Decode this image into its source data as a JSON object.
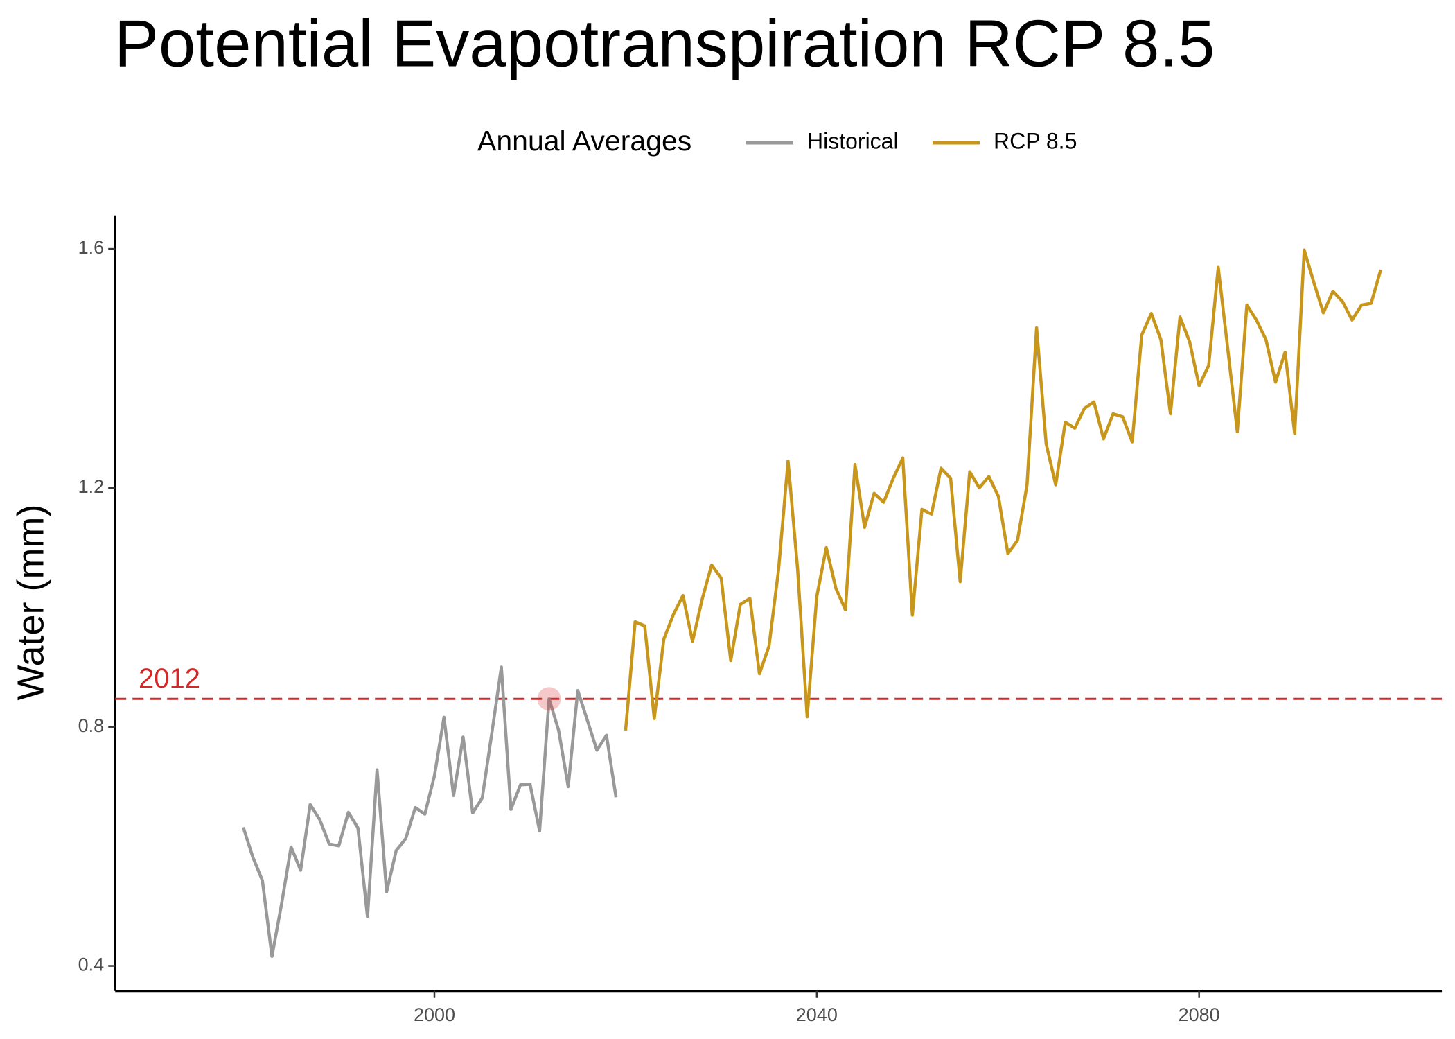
{
  "chart_data": {
    "type": "line",
    "title": "Potential Evapotranspiration RCP 8.5",
    "y_label": "Water (mm)",
    "legend_title": "Annual Averages",
    "legend_position": "top",
    "xlim": [
      1966.6,
      2105.4
    ],
    "ylim": [
      0.358,
      1.656
    ],
    "xticks": [
      2000,
      2040,
      2080
    ],
    "yticks": [
      0.4,
      0.8,
      1.2,
      1.6
    ],
    "grid": false,
    "series": [
      {
        "name": "Historical",
        "color": "#999999",
        "x": [
          1980,
          1981,
          1982,
          1983,
          1984,
          1985,
          1986,
          1987,
          1988,
          1989,
          1990,
          1991,
          1992,
          1993,
          1994,
          1995,
          1996,
          1997,
          1998,
          1999,
          2000,
          2001,
          2002,
          2003,
          2004,
          2005,
          2006,
          2007,
          2008,
          2009,
          2010,
          2011,
          2012,
          2013,
          2014,
          2015,
          2016,
          2017,
          2018,
          2019
        ],
        "values": [
          0.632,
          0.582,
          0.543,
          0.416,
          0.503,
          0.599,
          0.56,
          0.67,
          0.645,
          0.604,
          0.601,
          0.657,
          0.631,
          0.482,
          0.728,
          0.524,
          0.593,
          0.613,
          0.665,
          0.654,
          0.718,
          0.816,
          0.685,
          0.783,
          0.656,
          0.681,
          0.789,
          0.9,
          0.662,
          0.703,
          0.704,
          0.626,
          0.847,
          0.794,
          0.7,
          0.861,
          0.811,
          0.761,
          0.786,
          0.682
        ]
      },
      {
        "name": "RCP 8.5",
        "color": "#c8961a",
        "x": [
          2020,
          2021,
          2022,
          2023,
          2024,
          2025,
          2026,
          2027,
          2028,
          2029,
          2030,
          2031,
          2032,
          2033,
          2034,
          2035,
          2036,
          2037,
          2038,
          2039,
          2040,
          2041,
          2042,
          2043,
          2044,
          2045,
          2046,
          2047,
          2048,
          2049,
          2050,
          2051,
          2052,
          2053,
          2054,
          2055,
          2056,
          2057,
          2058,
          2059,
          2060,
          2061,
          2062,
          2063,
          2064,
          2065,
          2066,
          2067,
          2068,
          2069,
          2070,
          2071,
          2072,
          2073,
          2074,
          2075,
          2076,
          2077,
          2078,
          2079,
          2080,
          2081,
          2082,
          2083,
          2084,
          2085,
          2086,
          2087,
          2088,
          2089,
          2090,
          2091,
          2092,
          2093,
          2094,
          2095,
          2096,
          2097,
          2098,
          2099
        ],
        "values": [
          0.794,
          0.976,
          0.969,
          0.814,
          0.947,
          0.988,
          1.02,
          0.943,
          1.013,
          1.071,
          1.049,
          0.911,
          1.005,
          1.015,
          0.889,
          0.935,
          1.062,
          1.245,
          1.064,
          0.817,
          1.018,
          1.1,
          1.032,
          0.996,
          1.239,
          1.134,
          1.191,
          1.176,
          1.216,
          1.25,
          0.987,
          1.164,
          1.156,
          1.233,
          1.216,
          1.043,
          1.227,
          1.2,
          1.219,
          1.186,
          1.09,
          1.112,
          1.205,
          1.468,
          1.274,
          1.205,
          1.31,
          1.3,
          1.333,
          1.344,
          1.282,
          1.324,
          1.319,
          1.277,
          1.456,
          1.492,
          1.448,
          1.324,
          1.486,
          1.445,
          1.371,
          1.405,
          1.569,
          1.432,
          1.294,
          1.506,
          1.481,
          1.448,
          1.377,
          1.427,
          1.291,
          1.598,
          1.544,
          1.493,
          1.529,
          1.512,
          1.481,
          1.506,
          1.509,
          1.565
        ]
      }
    ],
    "annotation": {
      "text": "2012",
      "x": 2012,
      "y": 0.847,
      "color": "#d62728"
    }
  }
}
